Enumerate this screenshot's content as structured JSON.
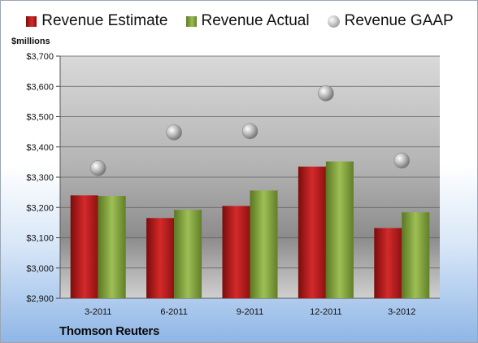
{
  "legend": [
    {
      "label": "Revenue Estimate",
      "icon": "red-square-icon"
    },
    {
      "label": "Revenue Actual",
      "icon": "green-square-icon"
    },
    {
      "label": "Revenue GAAP",
      "icon": "gray-sphere-icon"
    }
  ],
  "unit_label": "$millions",
  "source": "Thomson Reuters",
  "colors": {
    "estimate": "#c81e1e",
    "actual": "#8aad45",
    "gaap": "#a6a6a6"
  },
  "chart_data": {
    "type": "bar",
    "categories": [
      "3-2011",
      "6-2011",
      "9-2011",
      "12-2011",
      "3-2012"
    ],
    "series": [
      {
        "name": "Revenue Estimate",
        "values": [
          3240,
          3165,
          3205,
          3335,
          3132
        ]
      },
      {
        "name": "Revenue Actual",
        "values": [
          3238,
          3192,
          3256,
          3352,
          3184
        ]
      },
      {
        "name": "Revenue GAAP",
        "values": [
          3330,
          3448,
          3452,
          3577,
          3355
        ]
      }
    ],
    "ylabel": "$millions",
    "ylim": [
      2900,
      3700
    ],
    "yticks": [
      2900,
      3000,
      3100,
      3200,
      3300,
      3400,
      3500,
      3600,
      3700
    ],
    "ytick_labels": [
      "$2,900",
      "$3,000",
      "$3,100",
      "$3,200",
      "$3,300",
      "$3,400",
      "$3,500",
      "$3,600",
      "$3,700"
    ],
    "grid": true,
    "legend_position": "top"
  }
}
